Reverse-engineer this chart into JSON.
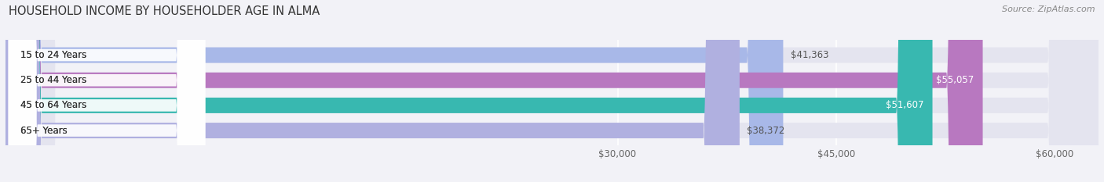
{
  "title": "HOUSEHOLD INCOME BY HOUSEHOLDER AGE IN ALMA",
  "source": "Source: ZipAtlas.com",
  "categories": [
    "15 to 24 Years",
    "25 to 44 Years",
    "45 to 64 Years",
    "65+ Years"
  ],
  "values": [
    41363,
    55057,
    51607,
    38372
  ],
  "bar_colors": [
    "#a8b8e8",
    "#b878c0",
    "#38b8b0",
    "#b0b0e0"
  ],
  "value_labels": [
    "$41,363",
    "$55,057",
    "$51,607",
    "$38,372"
  ],
  "label_inside": [
    false,
    true,
    true,
    false
  ],
  "xlim_min": -12000,
  "xlim_max": 63000,
  "xticks": [
    30000,
    45000,
    60000
  ],
  "xtick_labels": [
    "$30,000",
    "$45,000",
    "$60,000"
  ],
  "background_color": "#f2f2f7",
  "bar_bg_color": "#e4e4ef",
  "title_fontsize": 10.5,
  "source_fontsize": 8,
  "label_fontsize": 8.5,
  "value_fontsize": 8.5,
  "bar_height": 0.62,
  "bar_rounding": 2500,
  "bg_rounding": 3500
}
